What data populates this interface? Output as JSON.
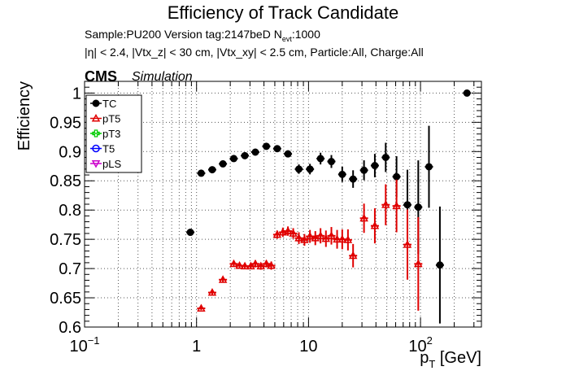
{
  "chart_data": {
    "type": "scatter",
    "title": "Efficiency of Track Candidate",
    "subtitle_line1": "Sample:PU200   Version tag:2147beD  N",
    "subtitle_line1_sub": "evt",
    "subtitle_line1_tail": ":1000",
    "subtitle_line2": "|η| < 2.4, |Vtx_z| < 30 cm, |Vtx_xy| < 2.5 cm, Particle:All, Charge:All",
    "cms_label": "CMS",
    "simulation_label": "Simulation",
    "ylabel": "Efficiency",
    "xlabel": "p_T [GeV]",
    "xlabel_main": "p",
    "xlabel_sub": "T",
    "xlabel_unit": " [GeV]",
    "xscale": "log",
    "xlim": [
      0.1,
      350
    ],
    "ylim": [
      0.6,
      1.02
    ],
    "grid": true,
    "legend_position": "top-left",
    "x_ticks": [
      {
        "value": 0.1,
        "base": "10",
        "exp": "−1"
      },
      {
        "value": 1,
        "base": "1",
        "exp": ""
      },
      {
        "value": 10,
        "base": "10",
        "exp": ""
      },
      {
        "value": 100,
        "base": "10",
        "exp": "2"
      }
    ],
    "y_ticks": [
      "0.6",
      "0.65",
      "0.7",
      "0.75",
      "0.8",
      "0.85",
      "0.9",
      "0.95",
      "1"
    ],
    "legend": [
      "TC",
      "pT5",
      "pT3",
      "T5",
      "pLS"
    ],
    "series": [
      {
        "name": "TC",
        "color": "#000000",
        "marker": "filled-circle",
        "points": [
          {
            "x": 0.88,
            "y": 0.762,
            "err": 0.004
          },
          {
            "x": 1.1,
            "y": 0.863,
            "err": 0.004
          },
          {
            "x": 1.38,
            "y": 0.869,
            "err": 0.004
          },
          {
            "x": 1.72,
            "y": 0.879,
            "err": 0.004
          },
          {
            "x": 2.15,
            "y": 0.888,
            "err": 0.004
          },
          {
            "x": 2.7,
            "y": 0.893,
            "err": 0.004
          },
          {
            "x": 3.35,
            "y": 0.899,
            "err": 0.005
          },
          {
            "x": 4.2,
            "y": 0.909,
            "err": 0.005
          },
          {
            "x": 5.25,
            "y": 0.905,
            "err": 0.005
          },
          {
            "x": 6.55,
            "y": 0.896,
            "err": 0.006
          },
          {
            "x": 8.2,
            "y": 0.87,
            "err": 0.008
          },
          {
            "x": 10.3,
            "y": 0.87,
            "err": 0.009
          },
          {
            "x": 12.8,
            "y": 0.888,
            "err": 0.01
          },
          {
            "x": 16.0,
            "y": 0.883,
            "err": 0.011
          },
          {
            "x": 20.0,
            "y": 0.861,
            "err": 0.013
          },
          {
            "x": 25.0,
            "y": 0.853,
            "err": 0.015
          },
          {
            "x": 31.3,
            "y": 0.868,
            "err": 0.017
          },
          {
            "x": 39.1,
            "y": 0.876,
            "err": 0.02
          },
          {
            "x": 48.9,
            "y": 0.89,
            "err": 0.025
          },
          {
            "x": 61.1,
            "y": 0.857,
            "err": 0.035
          },
          {
            "x": 76.4,
            "y": 0.809,
            "err": 0.06
          },
          {
            "x": 95.5,
            "y": 0.805,
            "err": 0.08
          },
          {
            "x": 119,
            "y": 0.874,
            "err": 0.07
          },
          {
            "x": 149,
            "y": 0.706,
            "err": 0.1
          },
          {
            "x": 260,
            "y": 1.0,
            "err": 0.0
          }
        ]
      },
      {
        "name": "pT5",
        "color": "#e00000",
        "marker": "open-triangle",
        "points": [
          {
            "x": 1.1,
            "y": 0.632,
            "err": 0.003
          },
          {
            "x": 1.38,
            "y": 0.659,
            "err": 0.004
          },
          {
            "x": 1.72,
            "y": 0.681,
            "err": 0.004
          },
          {
            "x": 2.15,
            "y": 0.708,
            "err": 0.005
          },
          {
            "x": 2.42,
            "y": 0.705,
            "err": 0.005
          },
          {
            "x": 2.7,
            "y": 0.704,
            "err": 0.005
          },
          {
            "x": 3.05,
            "y": 0.704,
            "err": 0.005
          },
          {
            "x": 3.35,
            "y": 0.708,
            "err": 0.006
          },
          {
            "x": 3.75,
            "y": 0.704,
            "err": 0.006
          },
          {
            "x": 4.2,
            "y": 0.708,
            "err": 0.006
          },
          {
            "x": 4.65,
            "y": 0.705,
            "err": 0.007
          },
          {
            "x": 5.25,
            "y": 0.758,
            "err": 0.007
          },
          {
            "x": 5.9,
            "y": 0.762,
            "err": 0.008
          },
          {
            "x": 6.55,
            "y": 0.764,
            "err": 0.008
          },
          {
            "x": 7.3,
            "y": 0.76,
            "err": 0.009
          },
          {
            "x": 8.2,
            "y": 0.752,
            "err": 0.01
          },
          {
            "x": 9.2,
            "y": 0.749,
            "err": 0.01
          },
          {
            "x": 10.3,
            "y": 0.755,
            "err": 0.011
          },
          {
            "x": 11.5,
            "y": 0.752,
            "err": 0.012
          },
          {
            "x": 12.8,
            "y": 0.756,
            "err": 0.013
          },
          {
            "x": 14.3,
            "y": 0.751,
            "err": 0.014
          },
          {
            "x": 16.0,
            "y": 0.756,
            "err": 0.015
          },
          {
            "x": 18.0,
            "y": 0.75,
            "err": 0.016
          },
          {
            "x": 20.0,
            "y": 0.75,
            "err": 0.017
          },
          {
            "x": 22.5,
            "y": 0.749,
            "err": 0.018
          },
          {
            "x": 25.0,
            "y": 0.722,
            "err": 0.02
          },
          {
            "x": 31.3,
            "y": 0.786,
            "err": 0.025
          },
          {
            "x": 39.1,
            "y": 0.773,
            "err": 0.03
          },
          {
            "x": 48.9,
            "y": 0.809,
            "err": 0.035
          },
          {
            "x": 61.1,
            "y": 0.807,
            "err": 0.045
          },
          {
            "x": 76.4,
            "y": 0.741,
            "err": 0.06
          },
          {
            "x": 95.5,
            "y": 0.708,
            "err": 0.08
          }
        ]
      },
      {
        "name": "pT3",
        "color": "#00cc00",
        "marker": "open-cross",
        "points": []
      },
      {
        "name": "T5",
        "color": "#0000ff",
        "marker": "open-circle",
        "points": []
      },
      {
        "name": "pLS",
        "color": "#cc00cc",
        "marker": "open-triangle-down",
        "points": []
      }
    ]
  }
}
